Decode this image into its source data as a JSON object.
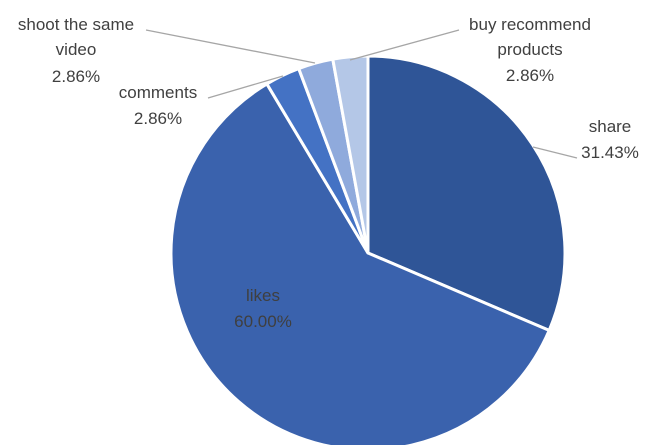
{
  "chart_data": {
    "type": "pie",
    "title": "",
    "slices": [
      {
        "label": "share",
        "value": 31.43,
        "value_label": "31.43%",
        "color": "#2f5597"
      },
      {
        "label": "likes",
        "value": 60.0,
        "value_label": "60.00%",
        "color": "#3a62ad"
      },
      {
        "label": "comments",
        "value": 2.86,
        "value_label": "2.86%",
        "color": "#4472c4"
      },
      {
        "label": "shoot the same video",
        "label_lines": [
          "shoot the same",
          "video"
        ],
        "value": 2.86,
        "value_label": "2.86%",
        "color": "#8faadc"
      },
      {
        "label": "buy recommend products",
        "label_lines": [
          "buy recommend",
          "products"
        ],
        "value": 2.86,
        "value_label": "2.86%",
        "color": "#b4c7e7"
      }
    ],
    "legend": "none",
    "start_angle": "12 o'clock, clockwise"
  }
}
